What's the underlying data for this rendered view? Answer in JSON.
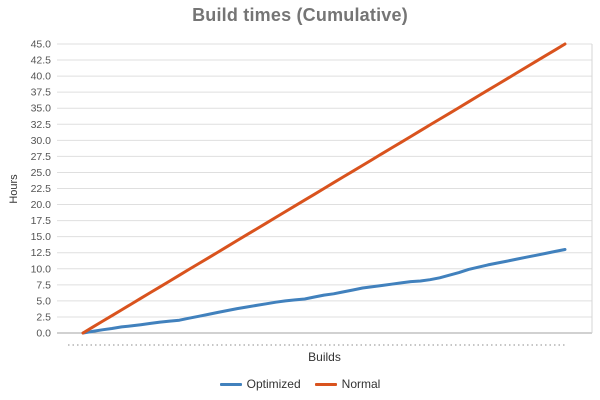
{
  "title": "Build times (Cumulative)",
  "axes": {
    "y_label": "Hours",
    "x_label": "Builds"
  },
  "colors": {
    "optimized_series": "#4181bd",
    "normal_series": "#d9531e",
    "title_text": "#757575",
    "gridline": "#dfdfdf",
    "zero_line": "#a3a3a3",
    "tick_text": "#545454"
  },
  "chart_data": {
    "type": "line",
    "title": "Build times (Cumulative)",
    "xlabel": "Builds",
    "ylabel": "Hours",
    "xlim": [
      0,
      100
    ],
    "ylim": [
      0,
      45
    ],
    "ytick_step": 2.5,
    "ytick_labels": [
      "0.0",
      "2.5",
      "5.0",
      "7.5",
      "10.0",
      "12.5",
      "15.0",
      "17.5",
      "20.0",
      "22.5",
      "25.0",
      "27.5",
      "30.0",
      "32.5",
      "35.0",
      "37.5",
      "40.0",
      "42.5",
      "45.0"
    ],
    "xtick_labels": [],
    "grid": true,
    "legend_position": "bottom",
    "x": [
      0,
      2,
      4,
      6,
      8,
      10,
      12,
      14,
      16,
      18,
      20,
      22,
      24,
      26,
      28,
      30,
      32,
      34,
      36,
      38,
      40,
      42,
      44,
      46,
      48,
      50,
      52,
      54,
      56,
      58,
      60,
      62,
      64,
      66,
      68,
      70,
      72,
      74,
      76,
      78,
      80,
      82,
      84,
      86,
      88,
      90,
      92,
      94,
      96,
      98,
      100
    ],
    "series": [
      {
        "name": "Optimized",
        "color": "#4181bd",
        "values": [
          0.0,
          0.25,
          0.5,
          0.7,
          0.95,
          1.1,
          1.3,
          1.5,
          1.7,
          1.85,
          2.0,
          2.3,
          2.6,
          2.9,
          3.2,
          3.5,
          3.8,
          4.05,
          4.3,
          4.55,
          4.8,
          5.0,
          5.15,
          5.3,
          5.6,
          5.9,
          6.1,
          6.4,
          6.7,
          7.0,
          7.2,
          7.4,
          7.6,
          7.8,
          8.0,
          8.1,
          8.3,
          8.6,
          9.0,
          9.4,
          9.9,
          10.25,
          10.6,
          10.9,
          11.2,
          11.5,
          11.8,
          12.1,
          12.4,
          12.7,
          13.0
        ]
      },
      {
        "name": "Normal",
        "color": "#d9531e",
        "values": [
          0.0,
          0.9,
          1.8,
          2.7,
          3.6,
          4.5,
          5.4,
          6.3,
          7.2,
          8.1,
          9.0,
          9.9,
          10.8,
          11.7,
          12.6,
          13.5,
          14.4,
          15.3,
          16.2,
          17.1,
          18.0,
          18.9,
          19.8,
          20.7,
          21.6,
          22.5,
          23.4,
          24.3,
          25.2,
          26.1,
          27.0,
          27.9,
          28.8,
          29.7,
          30.6,
          31.5,
          32.4,
          33.3,
          34.2,
          35.1,
          36.0,
          36.9,
          37.8,
          38.7,
          39.6,
          40.5,
          41.4,
          42.3,
          43.2,
          44.1,
          45.0
        ]
      }
    ]
  }
}
